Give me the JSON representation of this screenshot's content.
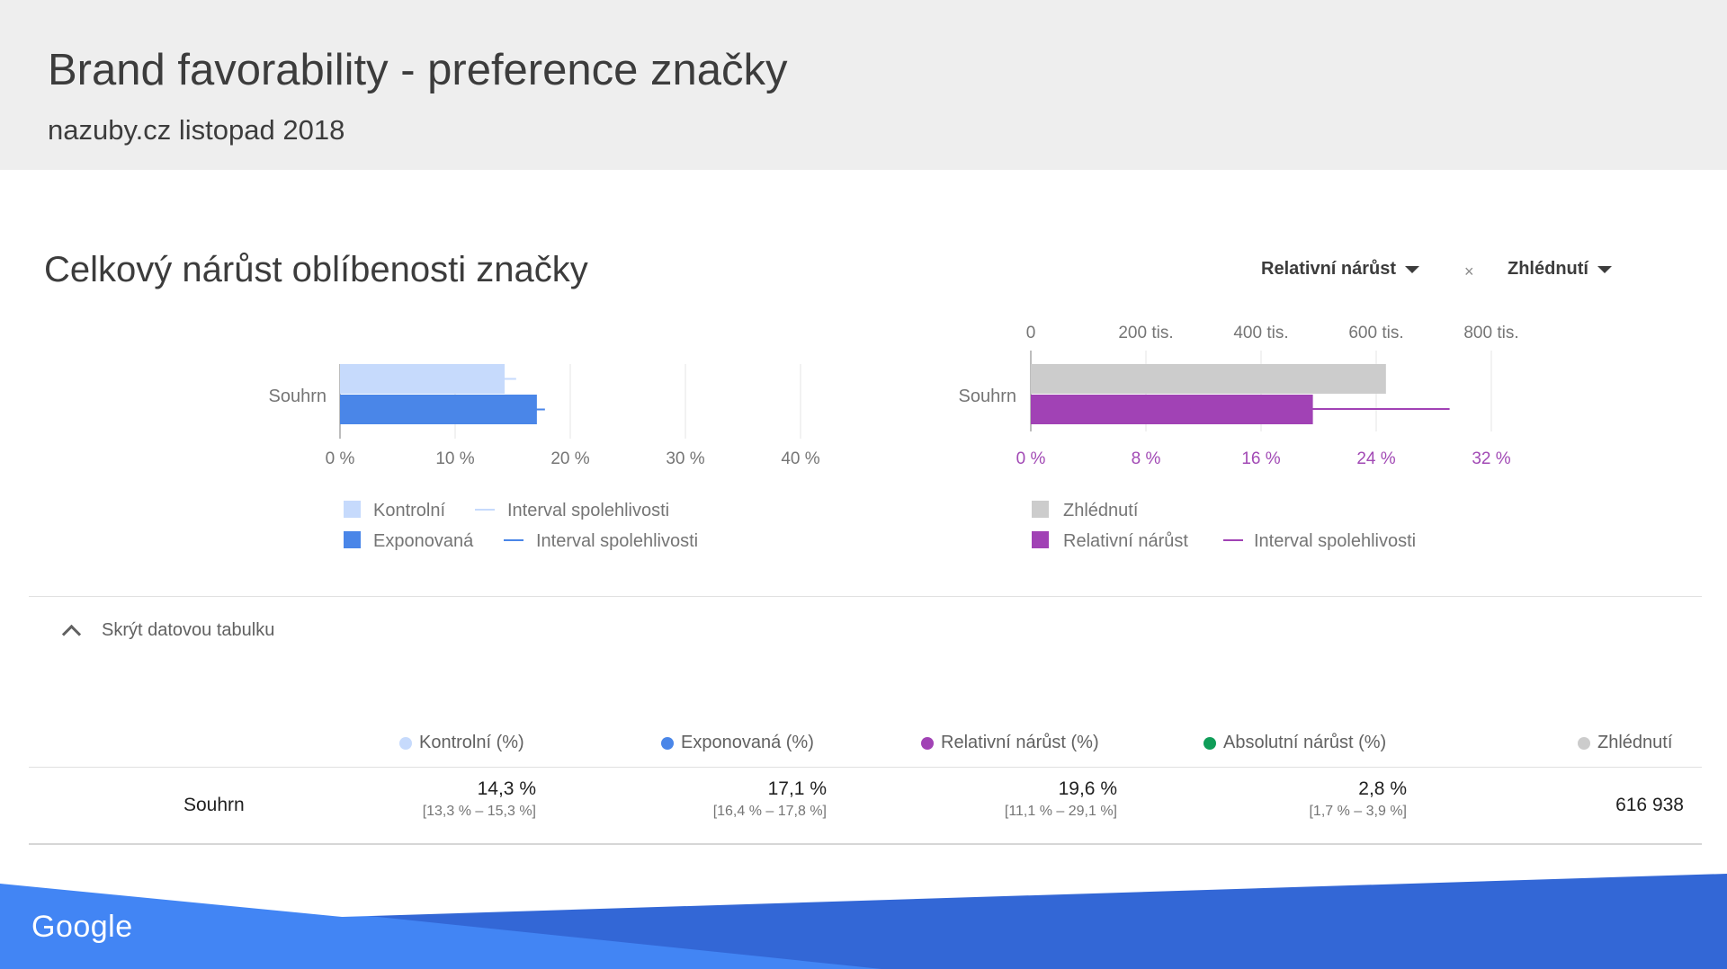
{
  "header": {
    "title": "Brand favorability - preference značky",
    "subtitle": "nazuby.cz listopad 2018"
  },
  "section": {
    "title": "Celkový nárůst oblíbenosti značky",
    "metric_dropdown": "Relativní nárůst",
    "separator": "×",
    "views_dropdown": "Zhlédnutí"
  },
  "colors": {
    "control": "#c6dafc",
    "exposed": "#4a86e8",
    "views": "#cccccc",
    "relative": "#a142b5",
    "absolute": "#0f9d58",
    "footer_light": "#4285f4",
    "footer_dark": "#3367d6"
  },
  "chart_data": [
    {
      "type": "bar",
      "categories": [
        "Souhrn"
      ],
      "series": [
        {
          "name": "Kontrolní",
          "values": [
            14.3
          ],
          "ci": [
            [
              13.3,
              15.3
            ]
          ]
        },
        {
          "name": "Exponovaná",
          "values": [
            17.1
          ],
          "ci": [
            [
              16.4,
              17.8
            ]
          ]
        }
      ],
      "xlim": [
        0,
        40
      ],
      "xticks": [
        "0 %",
        "10 %",
        "20 %",
        "30 %",
        "40 %"
      ],
      "legend": [
        "Kontrolní",
        "Interval spolehlivosti",
        "Exponovaná",
        "Interval spolehlivosti"
      ],
      "grid": true
    },
    {
      "type": "bar",
      "categories": [
        "Souhrn"
      ],
      "series": [
        {
          "name": "Zhlédnutí",
          "values": [
            616938
          ],
          "axis": "top"
        },
        {
          "name": "Relativní nárůst",
          "values": [
            19.6
          ],
          "ci": [
            [
              11.1,
              29.1
            ]
          ],
          "axis": "bottom"
        }
      ],
      "xticks_top": [
        "0",
        "200 tis.",
        "400 tis.",
        "600 tis.",
        "800 tis."
      ],
      "xlim_top": [
        0,
        800000
      ],
      "xticks_bottom": [
        "0 %",
        "8 %",
        "16 %",
        "24 %",
        "32 %"
      ],
      "xlim_bottom": [
        0,
        32
      ],
      "legend": [
        "Zhlédnutí",
        "Relativní nárůst",
        "Interval spolehlivosti"
      ],
      "grid": true
    }
  ],
  "table": {
    "toggle_label": "Skrýt datovou tabulku",
    "headers": {
      "control": "Kontrolní (%)",
      "exposed": "Exponovaná (%)",
      "relative": "Relativní nárůst (%)",
      "absolute": "Absolutní nárůst (%)",
      "views": "Zhlédnutí"
    },
    "rows": [
      {
        "label": "Souhrn",
        "control": "14,3 %",
        "control_ci": "[13,3 % – 15,3 %]",
        "exposed": "17,1 %",
        "exposed_ci": "[16,4 % – 17,8 %]",
        "relative": "19,6 %",
        "relative_ci": "[11,1 % – 29,1 %]",
        "absolute": "2,8 %",
        "absolute_ci": "[1,7 % – 3,9 %]",
        "views": "616 938"
      }
    ]
  },
  "footer": {
    "logo": "Google"
  }
}
